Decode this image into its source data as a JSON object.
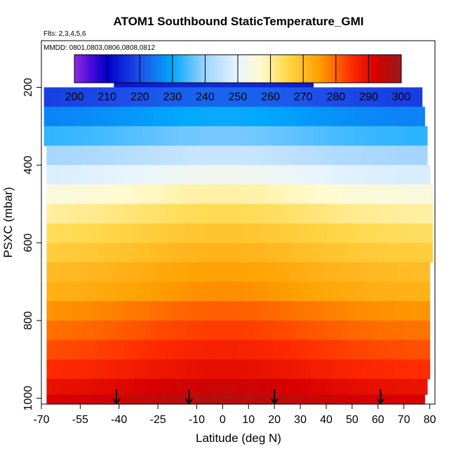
{
  "chart_data": {
    "type": "heatmap",
    "title": "ATOM1 Southbound StaticTemperature_GMI",
    "flights_label": "Flts: 2,3,4,5,6",
    "dates_label": "MMDD: 0801,0803,0806,0808,0812",
    "xlabel": "Latitude (deg N)",
    "ylabel": "PSXC (mbar)",
    "xlim": [
      -70,
      82
    ],
    "ylim": [
      1015,
      80
    ],
    "x_ticks": [
      -70,
      -55,
      -40,
      -25,
      -10,
      0,
      10,
      20,
      30,
      40,
      50,
      60,
      70,
      80
    ],
    "x_tick_labels": [
      "-70",
      "-55",
      "-40",
      "-25",
      "-10",
      "0",
      "10",
      "20",
      "30",
      "40",
      "50",
      "60",
      "70",
      "80"
    ],
    "y_ticks": [
      200,
      400,
      600,
      800,
      1000
    ],
    "y_tick_labels": [
      "200",
      "400",
      "600",
      "800",
      "1000"
    ],
    "colorbar": {
      "min": 200,
      "max": 300,
      "ticks": [
        200,
        210,
        220,
        230,
        240,
        250,
        260,
        270,
        280,
        290,
        300
      ],
      "tick_labels": [
        "200",
        "210",
        "220",
        "230",
        "240",
        "250",
        "260",
        "270",
        "280",
        "290",
        "300"
      ]
    },
    "levels": [
      {
        "p": 175,
        "range": [
          -42,
          35
        ],
        "temp": 212
      },
      {
        "p": 225,
        "range": [
          -69,
          77
        ],
        "temp": 219
      },
      {
        "p": 275,
        "range": [
          -69,
          78
        ],
        "temp": 227
      },
      {
        "p": 325,
        "range": [
          -69,
          79
        ],
        "temp": 234
      },
      {
        "p": 375,
        "range": [
          -68,
          79
        ],
        "temp": 242
      },
      {
        "p": 425,
        "range": [
          -68,
          80
        ],
        "temp": 249
      },
      {
        "p": 475,
        "range": [
          -68,
          81
        ],
        "temp": 256
      },
      {
        "p": 525,
        "range": [
          -68,
          81
        ],
        "temp": 261
      },
      {
        "p": 575,
        "range": [
          -68,
          81
        ],
        "temp": 265
      },
      {
        "p": 625,
        "range": [
          -68,
          81
        ],
        "temp": 268
      },
      {
        "p": 675,
        "range": [
          -68,
          80
        ],
        "temp": 271
      },
      {
        "p": 725,
        "range": [
          -68,
          80
        ],
        "temp": 273
      },
      {
        "p": 775,
        "range": [
          -68,
          80
        ],
        "temp": 277
      },
      {
        "p": 825,
        "range": [
          -68,
          80
        ],
        "temp": 280
      },
      {
        "p": 875,
        "range": [
          -68,
          80
        ],
        "temp": 283
      },
      {
        "p": 925,
        "range": [
          -68,
          80
        ],
        "temp": 286
      },
      {
        "p": 975,
        "range": [
          -68,
          79
        ],
        "temp": 290
      },
      {
        "p": 1005,
        "range": [
          -68,
          78
        ],
        "temp": 293
      }
    ],
    "latitude_anomaly": {
      "center": 0,
      "width": 45,
      "amplitude": 5
    },
    "markers_latitude": [
      -41,
      -13,
      20,
      61
    ],
    "markers_label": "arrow"
  }
}
